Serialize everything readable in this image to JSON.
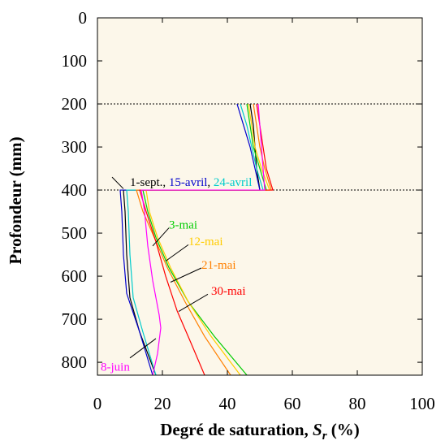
{
  "chart_data": {
    "type": "line",
    "xlabel_main": "Degré de saturation, ",
    "xlabel_symbol": "S",
    "xlabel_subscript": "r",
    "xlabel_unit": " (%)",
    "ylabel": "Profondeur (mm)",
    "xlim": [
      0,
      100
    ],
    "ylim": [
      830,
      0
    ],
    "y_inverted": true,
    "xticks": [
      0,
      20,
      40,
      60,
      80,
      100
    ],
    "yticks": [
      0,
      100,
      200,
      300,
      400,
      500,
      600,
      700,
      800
    ],
    "xtick_labels": [
      "0",
      "20",
      "40",
      "60",
      "80",
      "100"
    ],
    "ytick_labels": [
      "0",
      "100",
      "200",
      "300",
      "400",
      "500",
      "600",
      "700",
      "800"
    ],
    "background_color": "#fcf7ea",
    "reference_lines_y": [
      200,
      400
    ],
    "series": [
      {
        "name": "1-sept.",
        "color": "#000000",
        "points": [
          [
            47,
            200
          ],
          [
            48,
            250
          ],
          [
            48.5,
            300
          ],
          [
            49,
            350
          ],
          [
            50,
            400
          ],
          [
            8,
            400
          ],
          [
            8.5,
            450
          ],
          [
            9,
            550
          ],
          [
            10,
            650
          ],
          [
            13,
            730
          ],
          [
            18,
            830
          ]
        ]
      },
      {
        "name": "15-avril",
        "color": "#0000cc",
        "points": [
          [
            43,
            200
          ],
          [
            45,
            250
          ],
          [
            47,
            300
          ],
          [
            48.5,
            350
          ],
          [
            50,
            400
          ],
          [
            7,
            400
          ],
          [
            7.5,
            450
          ],
          [
            8,
            550
          ],
          [
            9,
            640
          ],
          [
            13,
            730
          ],
          [
            17,
            830
          ]
        ]
      },
      {
        "name": "24-avril",
        "color": "#00cccc",
        "points": [
          [
            44,
            200
          ],
          [
            46,
            250
          ],
          [
            47.5,
            300
          ],
          [
            49,
            350
          ],
          [
            51,
            400
          ],
          [
            9,
            400
          ],
          [
            9.5,
            450
          ],
          [
            10,
            550
          ],
          [
            11,
            650
          ],
          [
            14,
            730
          ],
          [
            18,
            830
          ]
        ]
      },
      {
        "name": "3-mai",
        "color": "#00cc00",
        "points": [
          [
            46,
            200
          ],
          [
            47,
            250
          ],
          [
            48,
            300
          ],
          [
            50,
            350
          ],
          [
            52,
            400
          ],
          [
            14,
            400
          ],
          [
            15.5,
            450
          ],
          [
            18,
            510
          ],
          [
            22,
            580
          ],
          [
            28,
            660
          ],
          [
            36,
            740
          ],
          [
            46,
            830
          ]
        ]
      },
      {
        "name": "12-mai",
        "color": "#ffcc00",
        "points": [
          [
            46.5,
            200
          ],
          [
            47.5,
            250
          ],
          [
            48.5,
            300
          ],
          [
            50.5,
            350
          ],
          [
            53,
            400
          ],
          [
            15,
            400
          ],
          [
            16,
            450
          ],
          [
            18.5,
            510
          ],
          [
            22.5,
            580
          ],
          [
            28,
            660
          ],
          [
            35,
            740
          ],
          [
            44,
            830
          ]
        ]
      },
      {
        "name": "21-mai",
        "color": "#ff8000",
        "points": [
          [
            48,
            200
          ],
          [
            49,
            250
          ],
          [
            50,
            300
          ],
          [
            51.5,
            350
          ],
          [
            53.5,
            400
          ],
          [
            12,
            400
          ],
          [
            14,
            450
          ],
          [
            17.5,
            510
          ],
          [
            21.5,
            580
          ],
          [
            27,
            660
          ],
          [
            33,
            740
          ],
          [
            41,
            830
          ]
        ]
      },
      {
        "name": "30-mai",
        "color": "#ff0000",
        "points": [
          [
            49,
            200
          ],
          [
            50,
            250
          ],
          [
            51,
            300
          ],
          [
            52,
            350
          ],
          [
            54,
            400
          ],
          [
            13,
            400
          ],
          [
            15,
            450
          ],
          [
            18,
            520
          ],
          [
            21,
            600
          ],
          [
            24.5,
            680
          ],
          [
            28.5,
            750
          ],
          [
            33,
            830
          ]
        ]
      },
      {
        "name": "8-juin",
        "color": "#ff00ff",
        "points": [
          [
            49.5,
            200
          ],
          [
            50,
            250
          ],
          [
            50.5,
            300
          ],
          [
            51,
            350
          ],
          [
            51.5,
            400
          ],
          [
            13.5,
            400
          ],
          [
            14.5,
            450
          ],
          [
            15.5,
            530
          ],
          [
            17,
            610
          ],
          [
            19,
            690
          ],
          [
            19.5,
            720
          ],
          [
            18.5,
            780
          ],
          [
            17,
            830
          ]
        ]
      }
    ],
    "annotations": [
      {
        "parts": [
          {
            "text": "1-sept.",
            "color": "#000000"
          },
          {
            "text": ", ",
            "color": "#000000"
          },
          {
            "text": "15-avril",
            "color": "#0000cc"
          },
          {
            "text": ", ",
            "color": "#000000"
          },
          {
            "text": "24-avril",
            "color": "#00cccc"
          }
        ],
        "x": 10,
        "y": 381,
        "pointer": [
          [
            4.5,
            370
          ],
          [
            8,
            397
          ]
        ]
      },
      {
        "parts": [
          {
            "text": "3-mai",
            "color": "#00cc00"
          }
        ],
        "x": 22,
        "y": 480,
        "pointer": [
          [
            22,
            488
          ],
          [
            17,
            530
          ]
        ]
      },
      {
        "parts": [
          {
            "text": "12-mai",
            "color": "#ffcc00"
          }
        ],
        "x": 28,
        "y": 519,
        "pointer": [
          [
            28,
            527
          ],
          [
            21,
            565
          ]
        ]
      },
      {
        "parts": [
          {
            "text": "21-mai",
            "color": "#ff8000"
          }
        ],
        "x": 32,
        "y": 573,
        "pointer": [
          [
            32,
            581
          ],
          [
            22.5,
            614
          ]
        ]
      },
      {
        "parts": [
          {
            "text": "30-mai",
            "color": "#ff0000"
          }
        ],
        "x": 35,
        "y": 634,
        "pointer": [
          [
            34,
            642
          ],
          [
            25,
            682
          ]
        ]
      },
      {
        "parts": [
          {
            "text": "8-juin",
            "color": "#ff00ff"
          }
        ],
        "x": 1,
        "y": 810,
        "pointer": [
          [
            10,
            790
          ],
          [
            18,
            745
          ]
        ]
      }
    ]
  }
}
